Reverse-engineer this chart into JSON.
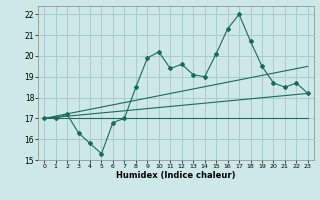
{
  "title": "",
  "xlabel": "Humidex (Indice chaleur)",
  "ylabel": "",
  "bg_color": "#cce8e8",
  "grid_color": "#aacccc",
  "line_color": "#1a6b5a",
  "xlim": [
    -0.5,
    23.5
  ],
  "ylim": [
    15,
    22.4
  ],
  "xticks": [
    0,
    1,
    2,
    3,
    4,
    5,
    6,
    7,
    8,
    9,
    10,
    11,
    12,
    13,
    14,
    15,
    16,
    17,
    18,
    19,
    20,
    21,
    22,
    23
  ],
  "yticks": [
    15,
    16,
    17,
    18,
    19,
    20,
    21,
    22
  ],
  "main_x": [
    0,
    1,
    2,
    3,
    4,
    5,
    6,
    7,
    8,
    9,
    10,
    11,
    12,
    13,
    14,
    15,
    16,
    17,
    18,
    19,
    20,
    21,
    22,
    23
  ],
  "main_y": [
    17.0,
    17.0,
    17.2,
    16.3,
    15.8,
    15.3,
    16.8,
    17.0,
    18.5,
    19.9,
    20.2,
    19.4,
    19.6,
    19.1,
    19.0,
    20.1,
    21.3,
    22.0,
    20.7,
    19.5,
    18.7,
    18.5,
    18.7,
    18.2
  ],
  "trend1_x": [
    0,
    23
  ],
  "trend1_y": [
    17.0,
    19.5
  ],
  "trend2_x": [
    0,
    23
  ],
  "trend2_y": [
    17.0,
    18.2
  ],
  "trend3_x": [
    0,
    23
  ],
  "trend3_y": [
    17.0,
    17.0
  ]
}
